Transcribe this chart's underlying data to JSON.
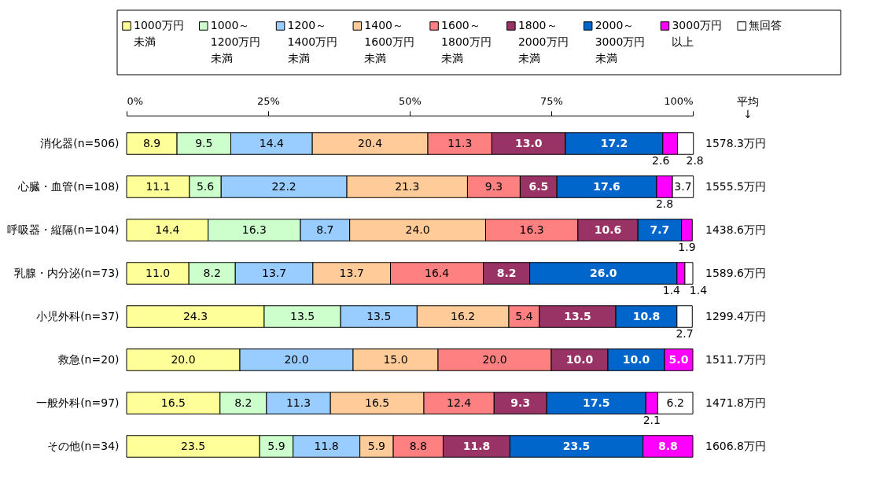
{
  "chart_data": {
    "type": "bar",
    "orientation": "horizontal",
    "stacked": true,
    "legend": "top",
    "grid": false,
    "categories": [
      "消化器(n=506)",
      "心臓・血管(n=108)",
      "呼吸器・縦隔(n=104)",
      "乳腺・内分泌(n=73)",
      "小児外科(n=37)",
      "救急(n=20)",
      "一般外科(n=97)",
      "その他(n=34)"
    ],
    "xlim": [
      0,
      100
    ],
    "xticks": [
      {
        "value": 0,
        "label": "0%"
      },
      {
        "value": 25,
        "label": "25%"
      },
      {
        "value": 50,
        "label": "50%"
      },
      {
        "value": 75,
        "label": "75%"
      },
      {
        "value": 100,
        "label": "100%"
      }
    ],
    "series": [
      {
        "name": "1000万円未満",
        "color": "#ffff99",
        "values": [
          8.9,
          11.1,
          14.4,
          11.0,
          24.3,
          20.0,
          16.5,
          23.5
        ],
        "value_labels": [
          "8.9",
          "11.1",
          "14.4",
          "11.0",
          "24.3",
          "20.0",
          "16.5",
          "23.5"
        ]
      },
      {
        "name": "1000～1200万円未満",
        "color": "#ccffcc",
        "values": [
          9.5,
          5.6,
          16.3,
          8.2,
          13.5,
          null,
          8.2,
          5.9
        ],
        "value_labels": [
          "9.5",
          "5.6",
          "16.3",
          "8.2",
          "13.5",
          null,
          "8.2",
          "5.9"
        ]
      },
      {
        "name": "1200～1400万円未満",
        "color": "#99ccff",
        "values": [
          14.4,
          22.2,
          8.7,
          13.7,
          13.5,
          20.0,
          11.3,
          11.8
        ],
        "value_labels": [
          "14.4",
          "22.2",
          "8.7",
          "13.7",
          "13.5",
          "20.0",
          "11.3",
          "11.8"
        ]
      },
      {
        "name": "1400～1600万円未満",
        "color": "#ffcc99",
        "values": [
          20.4,
          21.3,
          24.0,
          13.7,
          16.2,
          15.0,
          16.5,
          5.9
        ],
        "value_labels": [
          "20.4",
          "21.3",
          "24.0",
          "13.7",
          "16.2",
          "15.0",
          "16.5",
          "5.9"
        ]
      },
      {
        "name": "1600～1800万円未満",
        "color": "#ff8080",
        "values": [
          11.3,
          9.3,
          16.3,
          16.4,
          5.4,
          20.0,
          12.4,
          8.8
        ],
        "value_labels": [
          "11.3",
          "9.3",
          "16.3",
          "16.4",
          "5.4",
          "20.0",
          "12.4",
          "8.8"
        ]
      },
      {
        "name": "1800～2000万円未満",
        "color": "#993366",
        "values": [
          13.0,
          6.5,
          10.6,
          8.2,
          13.5,
          10.0,
          9.3,
          11.8
        ],
        "value_labels": [
          "13.0",
          "6.5",
          "10.6",
          "8.2",
          "13.5",
          "10.0",
          "9.3",
          "11.8"
        ]
      },
      {
        "name": "2000～3000万円未満",
        "color": "#0066cc",
        "values": [
          17.2,
          17.6,
          7.7,
          26.0,
          10.8,
          10.0,
          17.5,
          23.5
        ],
        "value_labels": [
          "17.2",
          "17.6",
          "7.7",
          "26.0",
          "10.8",
          "10.0",
          "17.5",
          "23.5"
        ]
      },
      {
        "name": "3000万円以上",
        "color": "#ff00ff",
        "values": [
          2.6,
          2.8,
          1.9,
          1.4,
          null,
          5.0,
          2.1,
          8.8
        ],
        "value_labels": [
          "2.6",
          "2.8",
          "1.9",
          "1.4",
          null,
          "5.0",
          "2.1",
          "8.8"
        ]
      },
      {
        "name": "無回答",
        "color": "#ffffff",
        "values": [
          2.8,
          3.7,
          null,
          1.4,
          2.7,
          null,
          6.2,
          null
        ],
        "value_labels": [
          "2.8",
          "3.7",
          null,
          "1.4",
          "2.7",
          null,
          "6.2",
          null
        ]
      }
    ],
    "annotations": [
      "平均 ↓",
      "1578.3万円",
      "1555.5万円",
      "1438.6万円",
      "1589.6万円",
      "1299.4万円",
      "1511.7万円",
      "1471.8万円",
      "1606.8万円"
    ]
  }
}
